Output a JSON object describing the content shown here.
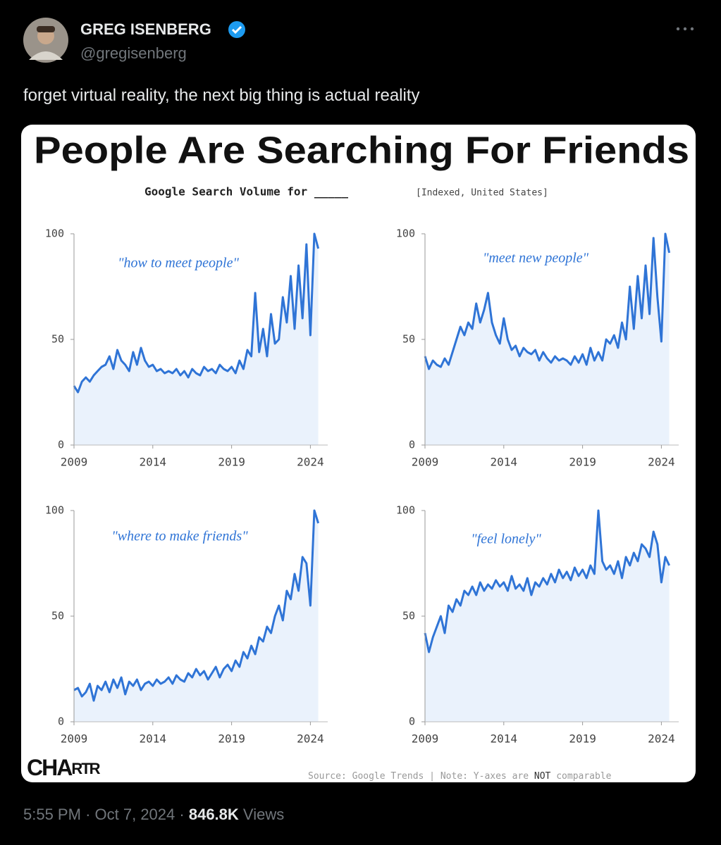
{
  "post": {
    "author_name": "GREG ISENBERG",
    "handle": "@gregisenberg",
    "text": "forget virtual reality, the next big thing is actual reality",
    "time": "5:55 PM",
    "separator": "·",
    "date": "Oct 7, 2024",
    "views": "846.8K",
    "views_label": "Views"
  },
  "image": {
    "title": "People Are Searching For Friends",
    "subtitle": "Google Search Volume for _____",
    "subtitle_note": "[Indexed, United States]",
    "logo": "CHA",
    "logo_small": "RTR",
    "source": "Source: Google Trends | Note: Y-axes are",
    "source_bold": "NOT",
    "source_end": "comparable"
  },
  "chart_data": [
    {
      "type": "line",
      "annotation": "\"how to meet people\"",
      "color": "#2f74d6",
      "fill": "#eaf2fc",
      "xlim": [
        2009,
        2025.1
      ],
      "ylim": [
        0,
        100
      ],
      "xticks": [
        2009,
        2014,
        2019,
        2024
      ],
      "yticks": [
        0,
        50,
        100
      ],
      "x": [
        2009,
        2009.25,
        2009.5,
        2009.75,
        2010,
        2010.25,
        2010.5,
        2010.75,
        2011,
        2011.25,
        2011.5,
        2011.75,
        2012,
        2012.25,
        2012.5,
        2012.75,
        2013,
        2013.25,
        2013.5,
        2013.75,
        2014,
        2014.25,
        2014.5,
        2014.75,
        2015,
        2015.25,
        2015.5,
        2015.75,
        2016,
        2016.25,
        2016.5,
        2016.75,
        2017,
        2017.25,
        2017.5,
        2017.75,
        2018,
        2018.25,
        2018.5,
        2018.75,
        2019,
        2019.25,
        2019.5,
        2019.75,
        2020,
        2020.25,
        2020.5,
        2020.75,
        2021,
        2021.25,
        2021.5,
        2021.75,
        2022,
        2022.25,
        2022.5,
        2022.75,
        2023,
        2023.25,
        2023.5,
        2023.75,
        2024,
        2024.25,
        2024.5
      ],
      "values": [
        28,
        25,
        30,
        32,
        30,
        33,
        35,
        37,
        38,
        42,
        36,
        45,
        40,
        38,
        35,
        44,
        38,
        46,
        40,
        37,
        38,
        35,
        36,
        34,
        35,
        34,
        36,
        33,
        35,
        32,
        36,
        34,
        33,
        37,
        35,
        36,
        34,
        38,
        36,
        35,
        37,
        34,
        40,
        36,
        45,
        42,
        72,
        44,
        55,
        42,
        62,
        48,
        50,
        70,
        58,
        80,
        55,
        85,
        60,
        95,
        52,
        100,
        93
      ]
    },
    {
      "type": "line",
      "annotation": "\"meet new people\"",
      "color": "#2f74d6",
      "fill": "#eaf2fc",
      "xlim": [
        2009,
        2025.1
      ],
      "ylim": [
        0,
        100
      ],
      "xticks": [
        2009,
        2014,
        2019,
        2024
      ],
      "yticks": [
        0,
        50,
        100
      ],
      "x": [
        2009,
        2009.25,
        2009.5,
        2009.75,
        2010,
        2010.25,
        2010.5,
        2010.75,
        2011,
        2011.25,
        2011.5,
        2011.75,
        2012,
        2012.25,
        2012.5,
        2012.75,
        2013,
        2013.25,
        2013.5,
        2013.75,
        2014,
        2014.25,
        2014.5,
        2014.75,
        2015,
        2015.25,
        2015.5,
        2015.75,
        2016,
        2016.25,
        2016.5,
        2016.75,
        2017,
        2017.25,
        2017.5,
        2017.75,
        2018,
        2018.25,
        2018.5,
        2018.75,
        2019,
        2019.25,
        2019.5,
        2019.75,
        2020,
        2020.25,
        2020.5,
        2020.75,
        2021,
        2021.25,
        2021.5,
        2021.75,
        2022,
        2022.25,
        2022.5,
        2022.75,
        2023,
        2023.25,
        2023.5,
        2023.75,
        2024,
        2024.25,
        2024.5
      ],
      "values": [
        42,
        36,
        40,
        38,
        37,
        41,
        38,
        44,
        50,
        56,
        52,
        58,
        55,
        67,
        58,
        64,
        72,
        58,
        52,
        48,
        60,
        50,
        45,
        47,
        42,
        46,
        44,
        43,
        45,
        40,
        44,
        41,
        39,
        42,
        40,
        41,
        40,
        38,
        42,
        39,
        43,
        38,
        46,
        40,
        44,
        40,
        50,
        48,
        52,
        46,
        58,
        50,
        75,
        55,
        80,
        60,
        85,
        62,
        98,
        70,
        49,
        100,
        91
      ]
    },
    {
      "type": "line",
      "annotation": "\"where to make friends\"",
      "color": "#2f74d6",
      "fill": "#eaf2fc",
      "xlim": [
        2009,
        2025.1
      ],
      "ylim": [
        0,
        100
      ],
      "xticks": [
        2009,
        2014,
        2019,
        2024
      ],
      "yticks": [
        0,
        50,
        100
      ],
      "x": [
        2009,
        2009.25,
        2009.5,
        2009.75,
        2010,
        2010.25,
        2010.5,
        2010.75,
        2011,
        2011.25,
        2011.5,
        2011.75,
        2012,
        2012.25,
        2012.5,
        2012.75,
        2013,
        2013.25,
        2013.5,
        2013.75,
        2014,
        2014.25,
        2014.5,
        2014.75,
        2015,
        2015.25,
        2015.5,
        2015.75,
        2016,
        2016.25,
        2016.5,
        2016.75,
        2017,
        2017.25,
        2017.5,
        2017.75,
        2018,
        2018.25,
        2018.5,
        2018.75,
        2019,
        2019.25,
        2019.5,
        2019.75,
        2020,
        2020.25,
        2020.5,
        2020.75,
        2021,
        2021.25,
        2021.5,
        2021.75,
        2022,
        2022.25,
        2022.5,
        2022.75,
        2023,
        2023.25,
        2023.5,
        2023.75,
        2024,
        2024.25,
        2024.5
      ],
      "values": [
        15,
        16,
        12,
        14,
        18,
        10,
        17,
        15,
        19,
        14,
        20,
        16,
        21,
        13,
        19,
        17,
        20,
        15,
        18,
        19,
        17,
        20,
        18,
        19,
        21,
        18,
        22,
        20,
        19,
        23,
        21,
        25,
        22,
        24,
        20,
        23,
        26,
        21,
        25,
        27,
        24,
        29,
        26,
        33,
        30,
        36,
        32,
        40,
        38,
        45,
        42,
        50,
        55,
        48,
        62,
        58,
        70,
        62,
        78,
        75,
        55,
        100,
        94
      ]
    },
    {
      "type": "line",
      "annotation": "\"feel lonely\"",
      "color": "#2f74d6",
      "fill": "#eaf2fc",
      "xlim": [
        2009,
        2025.1
      ],
      "ylim": [
        0,
        100
      ],
      "xticks": [
        2009,
        2014,
        2019,
        2024
      ],
      "yticks": [
        0,
        50,
        100
      ],
      "x": [
        2009,
        2009.25,
        2009.5,
        2009.75,
        2010,
        2010.25,
        2010.5,
        2010.75,
        2011,
        2011.25,
        2011.5,
        2011.75,
        2012,
        2012.25,
        2012.5,
        2012.75,
        2013,
        2013.25,
        2013.5,
        2013.75,
        2014,
        2014.25,
        2014.5,
        2014.75,
        2015,
        2015.25,
        2015.5,
        2015.75,
        2016,
        2016.25,
        2016.5,
        2016.75,
        2017,
        2017.25,
        2017.5,
        2017.75,
        2018,
        2018.25,
        2018.5,
        2018.75,
        2019,
        2019.25,
        2019.5,
        2019.75,
        2020,
        2020.25,
        2020.5,
        2020.75,
        2021,
        2021.25,
        2021.5,
        2021.75,
        2022,
        2022.25,
        2022.5,
        2022.75,
        2023,
        2023.25,
        2023.5,
        2023.75,
        2024,
        2024.25,
        2024.5
      ],
      "values": [
        42,
        33,
        40,
        45,
        50,
        42,
        55,
        52,
        58,
        55,
        62,
        60,
        64,
        60,
        66,
        62,
        65,
        63,
        67,
        64,
        66,
        62,
        69,
        63,
        65,
        62,
        68,
        60,
        66,
        64,
        68,
        65,
        70,
        66,
        72,
        68,
        71,
        67,
        73,
        69,
        72,
        68,
        74,
        70,
        100,
        76,
        72,
        74,
        70,
        76,
        68,
        78,
        74,
        80,
        76,
        84,
        82,
        78,
        90,
        84,
        66,
        78,
        74
      ]
    }
  ]
}
